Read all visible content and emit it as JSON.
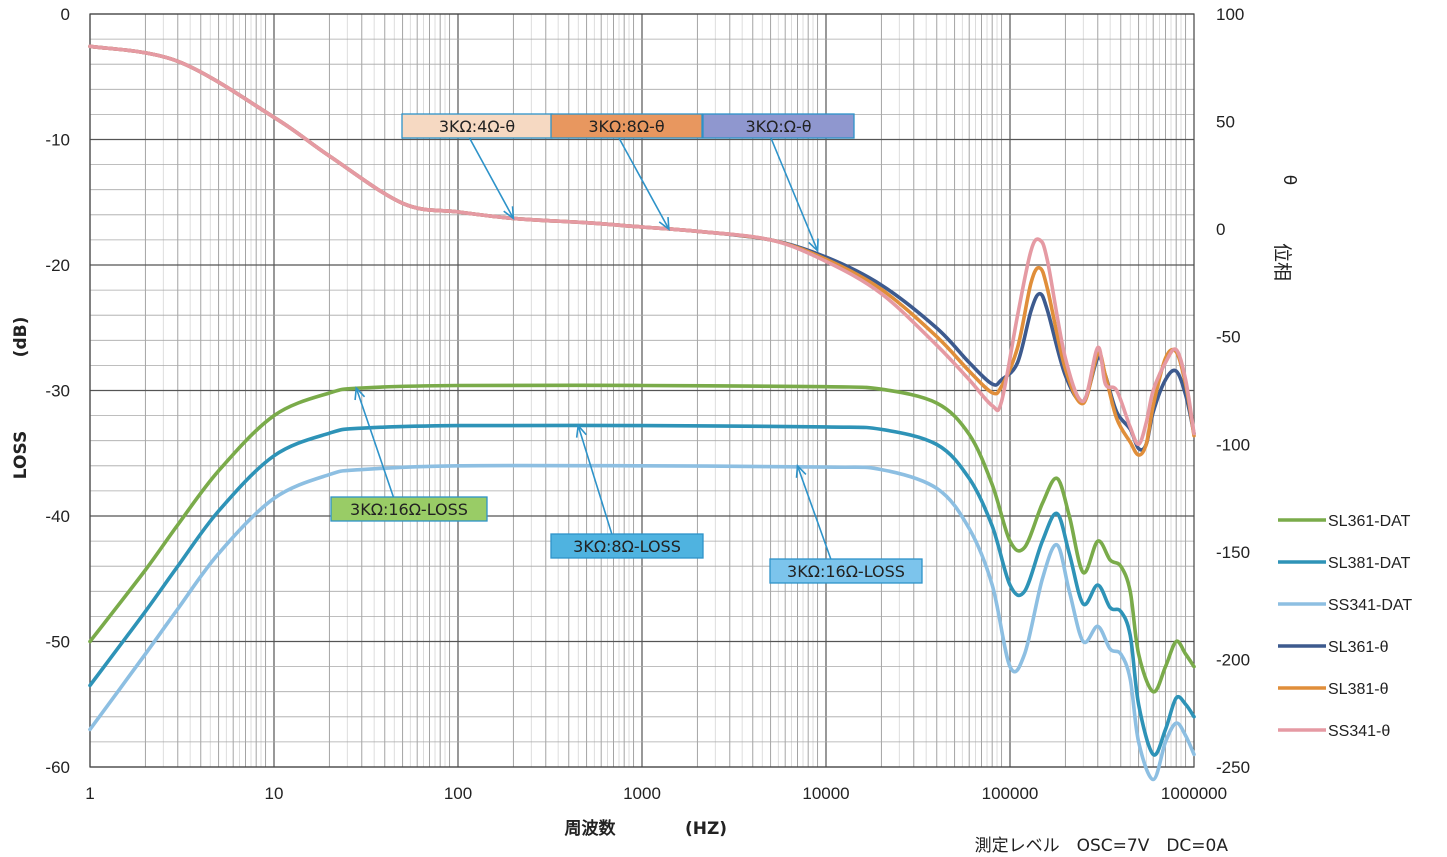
{
  "chart_data": {
    "type": "line",
    "xscale": "log",
    "xlim": [
      1,
      1000000
    ],
    "ylim": [
      -60,
      0
    ],
    "y2lim": [
      -250,
      100
    ],
    "grid": true,
    "legend_position": "right",
    "x_ticks": [
      "1",
      "10",
      "100",
      "1000",
      "10000",
      "100000",
      "1000000"
    ],
    "y_ticks": [
      "0",
      "-10",
      "-20",
      "-30",
      "-40",
      "-50",
      "-60"
    ],
    "y2_ticks": [
      "100",
      "50",
      "0",
      "-50",
      "-100",
      "-150",
      "-200",
      "-250"
    ],
    "xlabel": "周波数",
    "xlabel_unit": "(HZ)",
    "ylabel": "LOSS",
    "ylabel_unit": "(dB)",
    "y2label_symbol": "θ",
    "y2label": "位相",
    "measurement_note": "測定レベル　OSC=7V　DC=0A",
    "series": [
      {
        "name": "SL361-DAT",
        "axis": "left",
        "color": "#7aab4a",
        "points": [
          [
            1,
            -50
          ],
          [
            2,
            -44.3
          ],
          [
            3,
            -40.7
          ],
          [
            5,
            -36.4
          ],
          [
            10,
            -32
          ],
          [
            20,
            -30.2
          ],
          [
            30,
            -29.8
          ],
          [
            100,
            -29.6
          ],
          [
            1000,
            -29.6
          ],
          [
            10000,
            -29.7
          ],
          [
            20000,
            -29.9
          ],
          [
            40000,
            -31
          ],
          [
            60000,
            -33.5
          ],
          [
            80000,
            -37.5
          ],
          [
            100000,
            -42
          ],
          [
            120000,
            -42.5
          ],
          [
            150000,
            -39
          ],
          [
            180000,
            -37
          ],
          [
            210000,
            -40
          ],
          [
            250000,
            -44.5
          ],
          [
            300000,
            -42
          ],
          [
            350000,
            -43.5
          ],
          [
            400000,
            -44
          ],
          [
            450000,
            -46
          ],
          [
            500000,
            -51
          ],
          [
            600000,
            -54
          ],
          [
            700000,
            -52
          ],
          [
            800000,
            -50
          ],
          [
            900000,
            -51
          ],
          [
            1000000,
            -52
          ]
        ]
      },
      {
        "name": "SL381-DAT",
        "axis": "left",
        "color": "#2e93b7",
        "points": [
          [
            1,
            -53.5
          ],
          [
            2,
            -47.6
          ],
          [
            3,
            -44
          ],
          [
            5,
            -39.6
          ],
          [
            10,
            -35.2
          ],
          [
            20,
            -33.4
          ],
          [
            30,
            -33
          ],
          [
            100,
            -32.8
          ],
          [
            1000,
            -32.8
          ],
          [
            10000,
            -32.9
          ],
          [
            20000,
            -33.1
          ],
          [
            40000,
            -34.3
          ],
          [
            60000,
            -37
          ],
          [
            80000,
            -40.8
          ],
          [
            100000,
            -45.5
          ],
          [
            120000,
            -46
          ],
          [
            150000,
            -42
          ],
          [
            180000,
            -39.8
          ],
          [
            210000,
            -43
          ],
          [
            250000,
            -47
          ],
          [
            300000,
            -45.5
          ],
          [
            350000,
            -47.3
          ],
          [
            400000,
            -47.6
          ],
          [
            450000,
            -49.5
          ],
          [
            500000,
            -55
          ],
          [
            600000,
            -59
          ],
          [
            700000,
            -57
          ],
          [
            800000,
            -54.5
          ],
          [
            900000,
            -55
          ],
          [
            1000000,
            -56
          ]
        ]
      },
      {
        "name": "SS341-DAT",
        "axis": "left",
        "color": "#8dbfe2",
        "points": [
          [
            1,
            -57
          ],
          [
            2,
            -51
          ],
          [
            3,
            -47.4
          ],
          [
            5,
            -43
          ],
          [
            10,
            -38.6
          ],
          [
            20,
            -36.7
          ],
          [
            30,
            -36.3
          ],
          [
            100,
            -36
          ],
          [
            1000,
            -36
          ],
          [
            10000,
            -36.1
          ],
          [
            20000,
            -36.3
          ],
          [
            40000,
            -37.8
          ],
          [
            60000,
            -41
          ],
          [
            80000,
            -45.5
          ],
          [
            100000,
            -52
          ],
          [
            120000,
            -51
          ],
          [
            150000,
            -45
          ],
          [
            180000,
            -42.3
          ],
          [
            210000,
            -46
          ],
          [
            250000,
            -50
          ],
          [
            300000,
            -48.8
          ],
          [
            350000,
            -50.6
          ],
          [
            400000,
            -51
          ],
          [
            450000,
            -53
          ],
          [
            500000,
            -58
          ],
          [
            600000,
            -61
          ],
          [
            700000,
            -58
          ],
          [
            800000,
            -56.5
          ],
          [
            900000,
            -57.5
          ],
          [
            1000000,
            -59
          ]
        ]
      },
      {
        "name": "SL361-θ",
        "axis": "right",
        "color": "#3d5a8e",
        "points": [
          [
            1,
            85
          ],
          [
            3,
            78
          ],
          [
            10,
            52
          ],
          [
            20,
            34
          ],
          [
            50,
            12
          ],
          [
            100,
            8
          ],
          [
            200,
            5
          ],
          [
            500,
            3
          ],
          [
            1000,
            1
          ],
          [
            2000,
            -1
          ],
          [
            5000,
            -5
          ],
          [
            10000,
            -13
          ],
          [
            20000,
            -26
          ],
          [
            40000,
            -46
          ],
          [
            60000,
            -62
          ],
          [
            80000,
            -72
          ],
          [
            90000,
            -70
          ],
          [
            110000,
            -62
          ],
          [
            130000,
            -38
          ],
          [
            145000,
            -30
          ],
          [
            160000,
            -38
          ],
          [
            200000,
            -68
          ],
          [
            250000,
            -80
          ],
          [
            300000,
            -60
          ],
          [
            330000,
            -68
          ],
          [
            380000,
            -85
          ],
          [
            450000,
            -93
          ],
          [
            500000,
            -102
          ],
          [
            550000,
            -100
          ],
          [
            600000,
            -85
          ],
          [
            700000,
            -70
          ],
          [
            800000,
            -66
          ],
          [
            900000,
            -77
          ],
          [
            1000000,
            -95
          ]
        ]
      },
      {
        "name": "SL381-θ",
        "axis": "right",
        "color": "#e08e3a",
        "points": [
          [
            1,
            85
          ],
          [
            3,
            78
          ],
          [
            10,
            52
          ],
          [
            20,
            34
          ],
          [
            50,
            12
          ],
          [
            100,
            8
          ],
          [
            200,
            5
          ],
          [
            500,
            3
          ],
          [
            1000,
            1
          ],
          [
            2000,
            -1
          ],
          [
            5000,
            -5
          ],
          [
            10000,
            -14
          ],
          [
            20000,
            -28
          ],
          [
            40000,
            -50
          ],
          [
            60000,
            -66
          ],
          [
            80000,
            -76
          ],
          [
            90000,
            -73
          ],
          [
            110000,
            -55
          ],
          [
            130000,
            -25
          ],
          [
            145000,
            -18
          ],
          [
            160000,
            -28
          ],
          [
            200000,
            -65
          ],
          [
            250000,
            -81
          ],
          [
            300000,
            -58
          ],
          [
            330000,
            -68
          ],
          [
            380000,
            -88
          ],
          [
            450000,
            -99
          ],
          [
            500000,
            -105
          ],
          [
            550000,
            -100
          ],
          [
            600000,
            -82
          ],
          [
            700000,
            -60
          ],
          [
            800000,
            -57
          ],
          [
            900000,
            -72
          ],
          [
            1000000,
            -96
          ]
        ]
      },
      {
        "name": "SS341-θ",
        "axis": "right",
        "color": "#e59aa3",
        "points": [
          [
            1,
            85
          ],
          [
            3,
            78
          ],
          [
            10,
            52
          ],
          [
            20,
            34
          ],
          [
            50,
            12
          ],
          [
            100,
            8
          ],
          [
            200,
            5
          ],
          [
            500,
            3
          ],
          [
            1000,
            1
          ],
          [
            2000,
            -1
          ],
          [
            5000,
            -5
          ],
          [
            10000,
            -15
          ],
          [
            20000,
            -30
          ],
          [
            40000,
            -54
          ],
          [
            60000,
            -70
          ],
          [
            80000,
            -82
          ],
          [
            90000,
            -80
          ],
          [
            110000,
            -40
          ],
          [
            130000,
            -10
          ],
          [
            145000,
            -5
          ],
          [
            160000,
            -15
          ],
          [
            200000,
            -60
          ],
          [
            250000,
            -80
          ],
          [
            300000,
            -55
          ],
          [
            330000,
            -72
          ],
          [
            380000,
            -75
          ],
          [
            450000,
            -92
          ],
          [
            500000,
            -100
          ],
          [
            550000,
            -90
          ],
          [
            600000,
            -75
          ],
          [
            700000,
            -62
          ],
          [
            800000,
            -56
          ],
          [
            900000,
            -70
          ],
          [
            1000000,
            -95
          ]
        ]
      }
    ],
    "annotations": [
      {
        "label": "3KΩ:4Ω-θ",
        "bg": "#f6d9c2",
        "target_axis": "right",
        "target_x": 200,
        "target_y": 5
      },
      {
        "label": "3KΩ:8Ω-θ",
        "bg": "#e8975f",
        "target_axis": "right",
        "target_x": 1400,
        "target_y": 0
      },
      {
        "label": "3KΩ:Ω-θ",
        "bg": "#8f97cf",
        "target_axis": "right",
        "target_x": 9000,
        "target_y": -10
      },
      {
        "label": "3KΩ:16Ω-LOSS",
        "bg": "#99cc66",
        "target_axis": "left",
        "target_x": 28,
        "target_y": -29.8
      },
      {
        "label": "3KΩ:8Ω-LOSS",
        "bg": "#4fb3e0",
        "target_axis": "left",
        "target_x": 450,
        "target_y": -32.8
      },
      {
        "label": "3KΩ:16Ω-LOSS",
        "bg": "#7cc4ec",
        "target_axis": "left",
        "target_x": 7000,
        "target_y": -36
      }
    ]
  }
}
